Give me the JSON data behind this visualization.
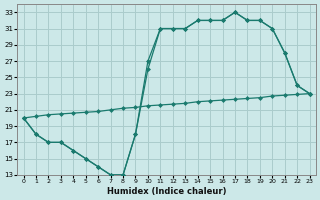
{
  "xlabel": "Humidex (Indice chaleur)",
  "bg_color": "#cce8e8",
  "grid_color": "#aacccc",
  "line_color": "#1a7a6e",
  "xlim": [
    -0.5,
    23.5
  ],
  "ylim": [
    13,
    34
  ],
  "xticks": [
    0,
    1,
    2,
    3,
    4,
    5,
    6,
    7,
    8,
    9,
    10,
    11,
    12,
    13,
    14,
    15,
    16,
    17,
    18,
    19,
    20,
    21,
    22,
    23
  ],
  "yticks": [
    13,
    15,
    17,
    19,
    21,
    23,
    25,
    27,
    29,
    31,
    33
  ],
  "line1_x": [
    0,
    1,
    2,
    3,
    4,
    5,
    6,
    7,
    8,
    9,
    10,
    11,
    12,
    13,
    14,
    15,
    16,
    17,
    18,
    19,
    20,
    21,
    22,
    23
  ],
  "line1_y": [
    20,
    18,
    17,
    17,
    16,
    15,
    14,
    13,
    13,
    18,
    27,
    31,
    31,
    31,
    32,
    32,
    32,
    33,
    32,
    32,
    31,
    28,
    24,
    23
  ],
  "line2_x": [
    0,
    1,
    2,
    3,
    4,
    5,
    6,
    7,
    8,
    9,
    10,
    11,
    12,
    13,
    14,
    15,
    16,
    17,
    18,
    19,
    20,
    21,
    22,
    23
  ],
  "line2_y": [
    20,
    18,
    17,
    17,
    16,
    15,
    14,
    13,
    13,
    18,
    26,
    31,
    31,
    31,
    32,
    32,
    32,
    33,
    32,
    32,
    31,
    28,
    24,
    23
  ],
  "line3_x": [
    0,
    1,
    2,
    3,
    4,
    5,
    6,
    7,
    8,
    9,
    10,
    11,
    12,
    13,
    14,
    15,
    16,
    17,
    18,
    19,
    20,
    21,
    22,
    23
  ],
  "line3_y": [
    20.0,
    20.2,
    20.4,
    20.5,
    20.6,
    20.7,
    20.8,
    21.0,
    21.2,
    21.3,
    21.5,
    21.6,
    21.7,
    21.8,
    22.0,
    22.1,
    22.2,
    22.3,
    22.4,
    22.5,
    22.7,
    22.8,
    22.9,
    23.0
  ]
}
